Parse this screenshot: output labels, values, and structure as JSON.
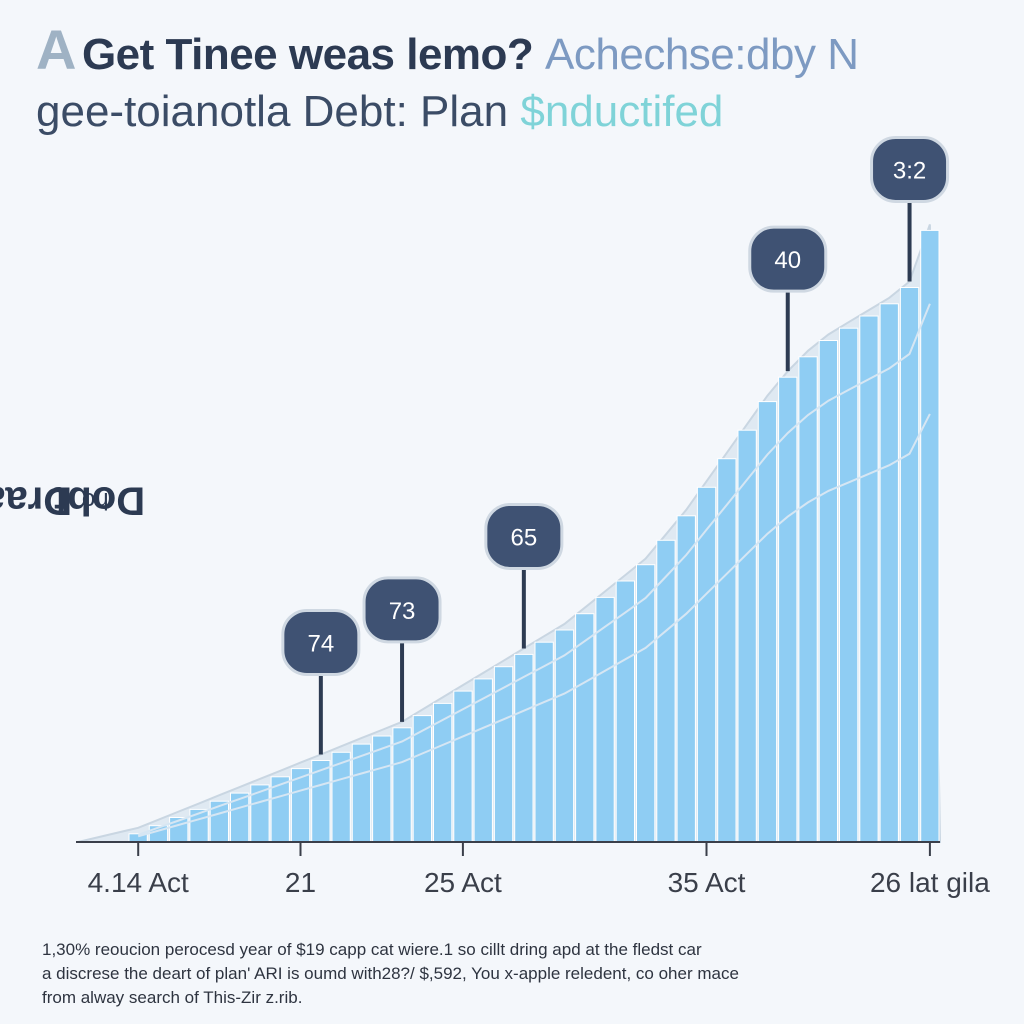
{
  "header": {
    "lead_letter": "A",
    "line1_main": "Get Tinee weas lemo?",
    "line1_faded": "Achechse:dby",
    "line1_end": "N",
    "line2_main": "gee-toianotla Debt: Plan",
    "line2_accent": "$nductifed"
  },
  "y_axis": {
    "label_main": "Draako",
    "label_small": "ho",
    "label_end": "Dobt"
  },
  "footnote": {
    "line1": "1,30% reoucion perocesd year of $19 capp cat wiere.1 so cillt dring apd at the fledst car",
    "line2": "a discrese the deart of plan' ARI is oumd with28?/ $,592, You x-apple reledent, co oher mace",
    "line3": "from alway search of This-Zir z.rib."
  },
  "colors": {
    "bar_fill": "#8fcdf3",
    "bar_stroke": "#ffffff",
    "area_fill": "#dfe9f2",
    "trend_line": "#d6e6f3",
    "callout_fill": "#3f5273",
    "callout_text": "#ffffff",
    "axis_line": "#3a3f4a"
  },
  "chart_data": {
    "type": "bar",
    "title": "Get Tinee weas lemo? Achechse:dby N gee-toianotla Debt: Plan $nductifed",
    "xlabel": "",
    "ylabel": "Draako ho Dobt",
    "x_tick_labels": [
      {
        "label": "4.14 Act",
        "index": 0
      },
      {
        "label": "21",
        "index": 8
      },
      {
        "label": "25 Act",
        "index": 16
      },
      {
        "label": "35 Act",
        "index": 28
      },
      {
        "label": "26 lat gila",
        "index": 39
      }
    ],
    "values": [
      2,
      4,
      6,
      8,
      10,
      12,
      14,
      16,
      18,
      20,
      22,
      24,
      26,
      28,
      31,
      34,
      37,
      40,
      43,
      46,
      49,
      52,
      56,
      60,
      64,
      68,
      74,
      80,
      87,
      94,
      101,
      108,
      114,
      119,
      123,
      126,
      129,
      132,
      136,
      150
    ],
    "ylim": [
      0,
      155
    ],
    "callouts": [
      {
        "label": "74",
        "index": 9
      },
      {
        "label": "73",
        "index": 13
      },
      {
        "label": "65",
        "index": 19
      },
      {
        "label": "40",
        "index": 32
      },
      {
        "label": "3:2",
        "index": 38
      }
    ],
    "grid": false,
    "legend": "none"
  }
}
